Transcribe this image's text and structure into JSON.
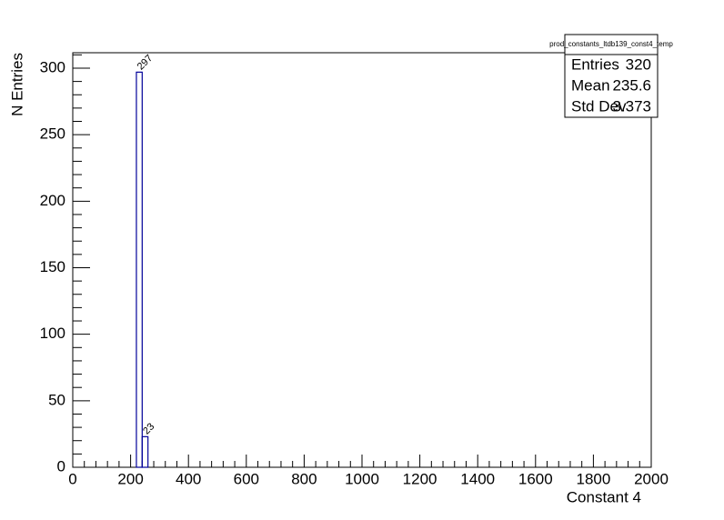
{
  "chart_data": {
    "type": "histogram",
    "stats": {
      "name": "prod_constants_ltdb139_const4_temp",
      "rows": [
        {
          "label": "Entries",
          "value": 320
        },
        {
          "label": "Mean",
          "value": 235.6
        },
        {
          "label": "Std Dev",
          "value": 3.373
        }
      ]
    },
    "x_label": "Constant 4",
    "y_label": "N Entries",
    "bins": [
      220,
      240,
      260
    ],
    "values": [
      297,
      23
    ],
    "color": "#000099",
    "xlim": [
      0,
      2000
    ],
    "xticks": [
      0,
      200,
      400,
      600,
      800,
      1000,
      1200,
      1400,
      1600,
      1800,
      2000
    ],
    "ylim": [
      0,
      311.6
    ],
    "yticks": [
      0,
      50,
      100,
      150,
      200,
      250,
      300
    ]
  }
}
